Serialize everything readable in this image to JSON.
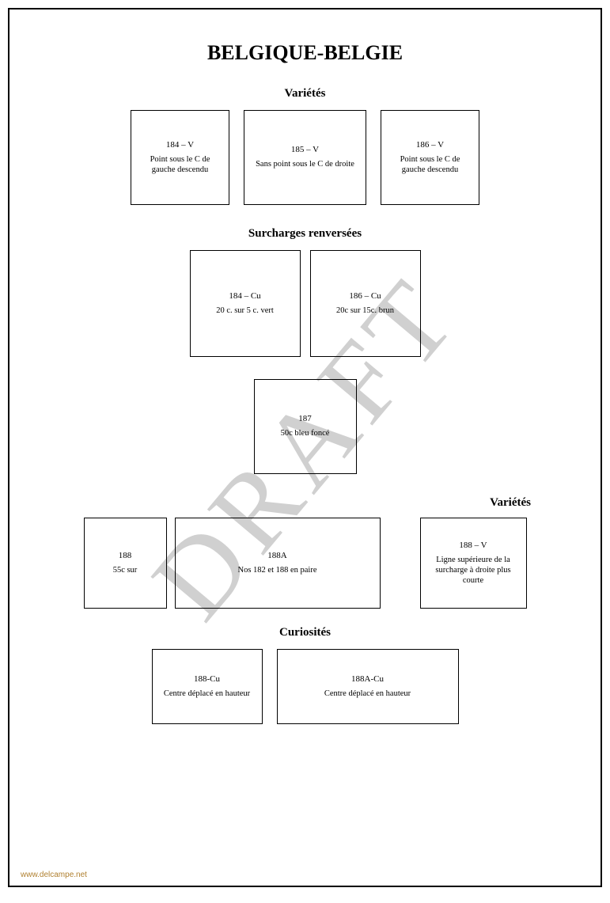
{
  "watermark": "DRAFT",
  "title": "BELGIQUE-BELGIE",
  "footer": "www.delcampe.net",
  "sections": {
    "varietes1": {
      "title": "Variétés",
      "boxes": [
        {
          "code": "184 – V",
          "desc": "Point sous le C de gauche descendu"
        },
        {
          "code": "185 – V",
          "desc": "Sans point sous le C de droite"
        },
        {
          "code": "186 – V",
          "desc": "Point sous le C de gauche descendu"
        }
      ]
    },
    "surcharges": {
      "title": "Surcharges renversées",
      "boxes": [
        {
          "code": "184 – Cu",
          "desc": "20 c. sur 5 c. vert"
        },
        {
          "code": "186 – Cu",
          "desc": "20c sur 15c. brun"
        }
      ]
    },
    "single": {
      "boxes": [
        {
          "code": "187",
          "desc": "50c bleu foncé"
        }
      ]
    },
    "varietes2": {
      "title": "Variétés",
      "boxes": [
        {
          "code": "188",
          "desc": "55c sur"
        },
        {
          "code": "188A",
          "desc": "Nos 182 et 188 en paire"
        },
        {
          "code": "188 – V",
          "desc": "Ligne supérieure de la surcharge à droite plus courte"
        }
      ]
    },
    "curiosites": {
      "title": "Curiosités",
      "boxes": [
        {
          "code": "188-Cu",
          "desc": "Centre déplacé en hauteur"
        },
        {
          "code": "188A-Cu",
          "desc": "Centre déplacé en hauteur"
        }
      ]
    }
  }
}
